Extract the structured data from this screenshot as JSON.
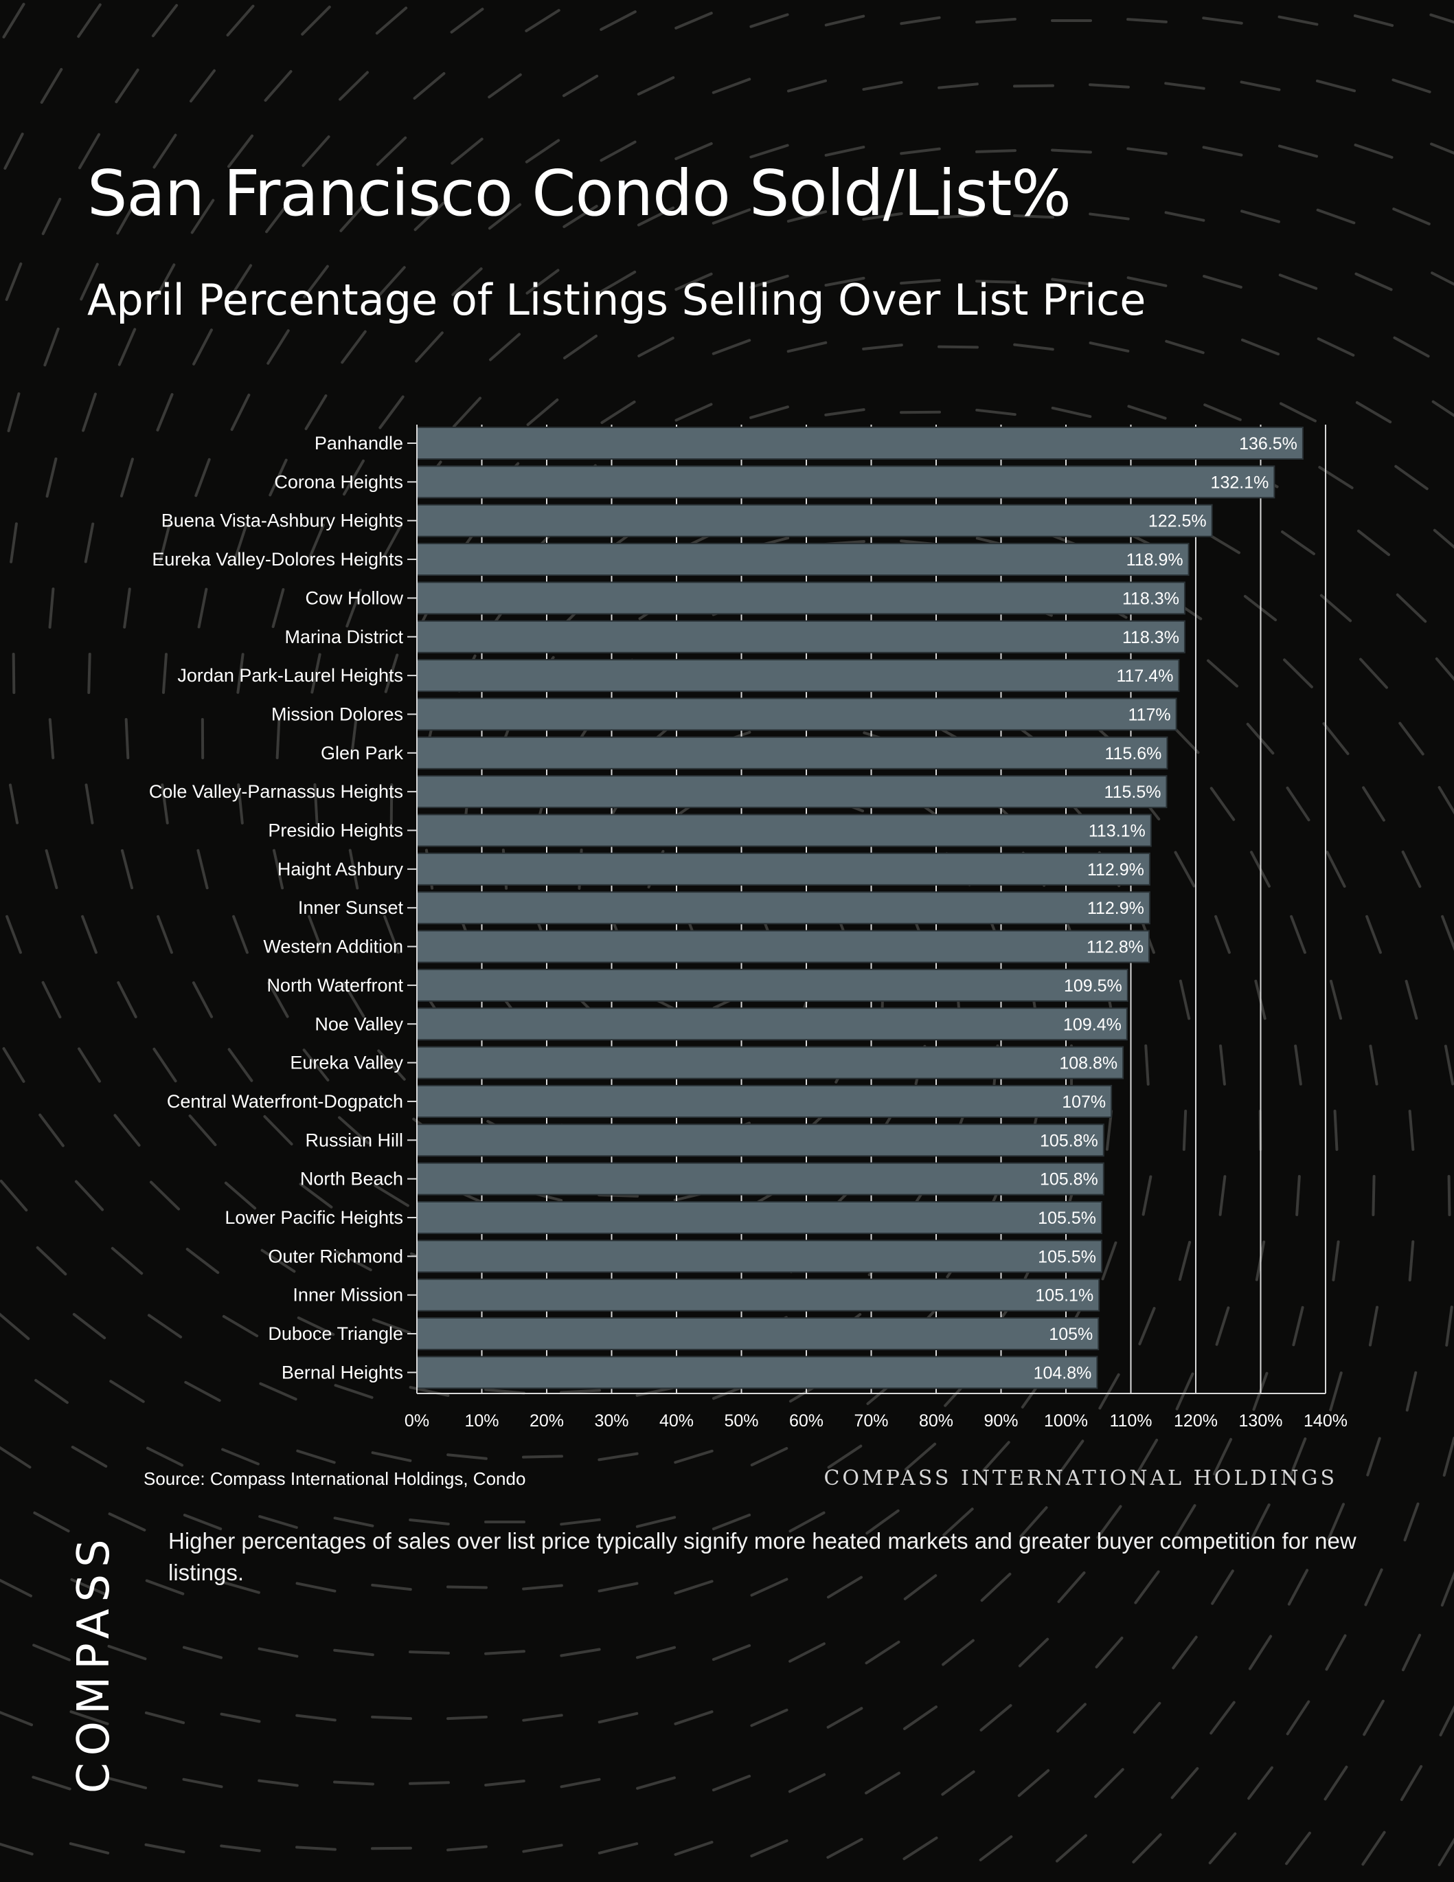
{
  "header": {
    "title": "San Francisco Condo Sold/List%",
    "subtitle": "April Percentage of Listings Selling Over List Price"
  },
  "footer": {
    "source": "Source: Compass International Holdings, Condo",
    "watermark": "COMPASS INTERNATIONAL HOLDINGS",
    "note": "Higher percentages of sales over list price typically signify more heated markets and greater buyer competition for new listings.",
    "logo": "COMPASS"
  },
  "colors": {
    "background": "#0b0b0a",
    "bar": "#57676f",
    "bar_outline": "#2a3236",
    "text": "#ffffff",
    "grid": "#d9d9d9"
  },
  "chart_data": {
    "type": "bar",
    "orientation": "horizontal",
    "categories": [
      "Panhandle",
      "Corona Heights",
      "Buena Vista-Ashbury Heights",
      "Eureka Valley-Dolores Heights",
      "Cow Hollow",
      "Marina District",
      "Jordan Park-Laurel Heights",
      "Mission Dolores",
      "Glen Park",
      "Cole Valley-Parnassus Heights",
      "Presidio Heights",
      "Haight Ashbury",
      "Inner Sunset",
      "Western Addition",
      "North Waterfront",
      "Noe Valley",
      "Eureka Valley",
      "Central Waterfront-Dogpatch",
      "Russian Hill",
      "North Beach",
      "Lower Pacific Heights",
      "Outer Richmond",
      "Inner Mission",
      "Duboce Triangle",
      "Bernal Heights"
    ],
    "values": [
      136.5,
      132.1,
      122.5,
      118.9,
      118.3,
      118.3,
      117.4,
      117,
      115.6,
      115.5,
      113.1,
      112.9,
      112.9,
      112.8,
      109.5,
      109.4,
      108.8,
      107,
      105.8,
      105.8,
      105.5,
      105.5,
      105.1,
      105,
      104.8
    ],
    "data_labels": [
      "136.5%",
      "132.1%",
      "122.5%",
      "118.9%",
      "118.3%",
      "118.3%",
      "117.4%",
      "117%",
      "115.6%",
      "115.5%",
      "113.1%",
      "112.9%",
      "112.9%",
      "112.8%",
      "109.5%",
      "109.4%",
      "108.8%",
      "107%",
      "105.8%",
      "105.8%",
      "105.5%",
      "105.5%",
      "105.1%",
      "105%",
      "104.8%"
    ],
    "xlim": [
      0,
      140
    ],
    "x_ticks": [
      0,
      10,
      20,
      30,
      40,
      50,
      60,
      70,
      80,
      90,
      100,
      110,
      120,
      130,
      140
    ],
    "x_tick_labels": [
      "0%",
      "10%",
      "20%",
      "30%",
      "40%",
      "50%",
      "60%",
      "70%",
      "80%",
      "90%",
      "100%",
      "110%",
      "120%",
      "130%",
      "140%"
    ],
    "grid": true,
    "legend": false
  }
}
